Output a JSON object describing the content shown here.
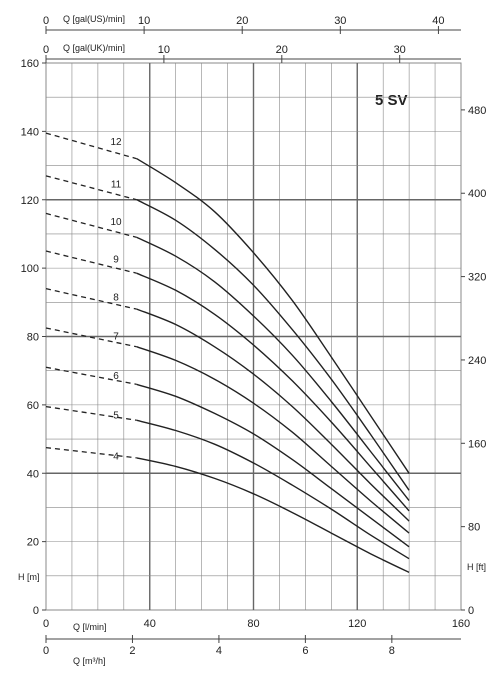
{
  "chart_data": {
    "type": "line",
    "title": "5 SV",
    "colors": {
      "curve": "#222222",
      "grid": "#888888",
      "grid_major": "#666666"
    },
    "axes": {
      "left": {
        "label": "H [m]",
        "range": [
          0,
          160
        ],
        "ticks": [
          "0",
          "20",
          "40",
          "60",
          "80",
          "100",
          "120",
          "140",
          "160"
        ]
      },
      "right": {
        "label": "H [ft]",
        "range": [
          0,
          525
        ],
        "ticks": [
          "0",
          "80",
          "160",
          "240",
          "320",
          "400",
          "480"
        ]
      },
      "bottom_lpm": {
        "label": "Q [l/min]",
        "range": [
          0,
          160
        ],
        "ticks": [
          "0",
          "40",
          "80",
          "120",
          "160"
        ]
      },
      "bottom_m3h": {
        "label": "Q [m³/h]",
        "range": [
          0,
          9.6
        ],
        "ticks": [
          "0",
          "2",
          "4",
          "6",
          "8"
        ]
      },
      "top_us": {
        "label": "Q [gal(US)/min]",
        "range": [
          0,
          42.3
        ],
        "ticks": [
          "0",
          "10",
          "20",
          "30",
          "40"
        ]
      },
      "top_uk": {
        "label": "Q [gal(UK)/min]",
        "range": [
          0,
          35.2
        ],
        "ticks": [
          "0",
          "10",
          "20",
          "30"
        ]
      }
    },
    "grid": true,
    "series": [
      {
        "name": "4",
        "shutoff_head": 47.5,
        "x": [
          35,
          50,
          65,
          80,
          95,
          110,
          125,
          140
        ],
        "y": [
          44.5,
          42,
          38.5,
          34,
          28.5,
          22.5,
          16.5,
          11
        ]
      },
      {
        "name": "5",
        "shutoff_head": 59.5,
        "x": [
          35,
          50,
          65,
          80,
          95,
          110,
          125,
          140
        ],
        "y": [
          55.5,
          52.5,
          48.5,
          43,
          36.5,
          29.5,
          22,
          15
        ]
      },
      {
        "name": "6",
        "shutoff_head": 71,
        "x": [
          35,
          50,
          65,
          80,
          95,
          110,
          125,
          140
        ],
        "y": [
          66,
          62.5,
          57.5,
          51.5,
          44,
          35.5,
          27,
          18.5
        ]
      },
      {
        "name": "7",
        "shutoff_head": 82.5,
        "x": [
          35,
          50,
          65,
          80,
          95,
          110,
          125,
          140
        ],
        "y": [
          77,
          73,
          67.5,
          60.5,
          52,
          42,
          32,
          22.5
        ]
      },
      {
        "name": "8",
        "shutoff_head": 94,
        "x": [
          35,
          50,
          65,
          80,
          95,
          110,
          125,
          140
        ],
        "y": [
          88,
          83.5,
          77,
          69,
          59.5,
          48.5,
          37,
          26
        ]
      },
      {
        "name": "9",
        "shutoff_head": 105,
        "x": [
          35,
          50,
          65,
          80,
          95,
          110,
          125,
          140
        ],
        "y": [
          98.5,
          93.5,
          86.5,
          77.5,
          67,
          55,
          42,
          29
        ]
      },
      {
        "name": "10",
        "shutoff_head": 116,
        "x": [
          35,
          50,
          65,
          80,
          95,
          110,
          125,
          140
        ],
        "y": [
          109,
          103.5,
          96,
          86,
          74.5,
          61,
          46.5,
          32
        ]
      },
      {
        "name": "11",
        "shutoff_head": 127,
        "x": [
          35,
          50,
          65,
          80,
          95,
          110,
          125,
          140
        ],
        "y": [
          120,
          114,
          105.5,
          95,
          82,
          67.5,
          51.5,
          35
        ]
      },
      {
        "name": "12",
        "shutoff_head": 139.5,
        "x": [
          35,
          50,
          65,
          80,
          95,
          110,
          125,
          140
        ],
        "y": [
          132,
          125,
          116.5,
          104.5,
          90.5,
          74,
          57,
          40
        ]
      }
    ]
  }
}
